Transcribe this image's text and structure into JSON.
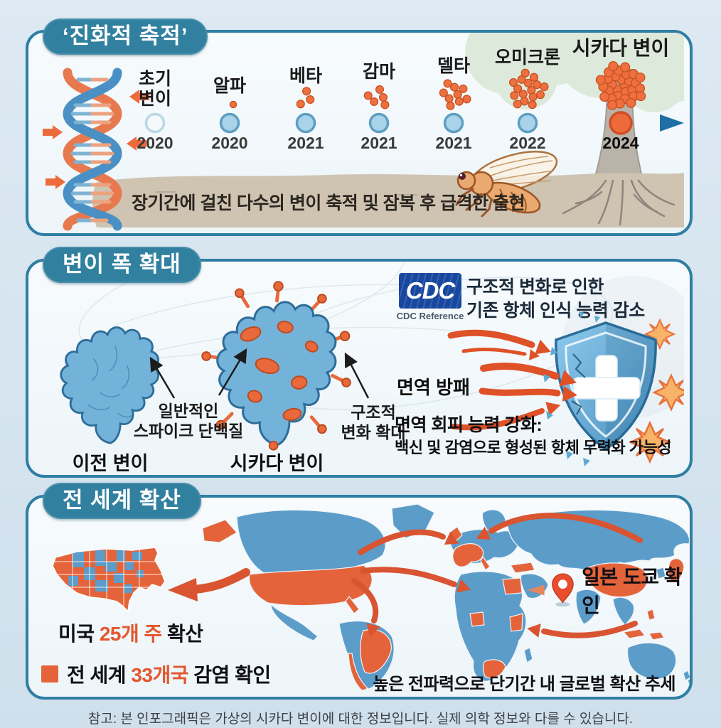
{
  "page": {
    "footer_note": "참고: 본 인포그래픽은 가상의 시카다 변이에 대한 정보입니다. 실제 의학 정보와 다를 수 있습니다."
  },
  "colors": {
    "background": "#d8e6f0",
    "panel_border": "#2f7ea4",
    "pill_background": "#31809f",
    "accent_orange": "#e4633a",
    "map_blue": "#5b9cc9",
    "timeline_blue": "#1e6fa6"
  },
  "panel_evolution": {
    "title": "‘진화적 축적’",
    "caption": "장기간에 걸친 다수의 변이 축적 및 잠복 후 급격한 출현",
    "timeline": [
      {
        "label": "초기\n변이",
        "year": "2020",
        "dots": 0,
        "node": "open"
      },
      {
        "label": "알파",
        "year": "2020",
        "dots": 1,
        "node": "blue"
      },
      {
        "label": "베타",
        "year": "2021",
        "dots": 3,
        "node": "blue"
      },
      {
        "label": "감마",
        "year": "2021",
        "dots": 5,
        "node": "blue"
      },
      {
        "label": "델타",
        "year": "2021",
        "dots": 9,
        "node": "blue"
      },
      {
        "label": "오미크론",
        "year": "2022",
        "dots": 16,
        "node": "blue"
      },
      {
        "label": "시카다 변이",
        "year": "2024",
        "dots": 30,
        "node": "orange"
      }
    ]
  },
  "panel_mutation": {
    "title": "변이 폭 확대",
    "cdc": {
      "logo": "CDC",
      "caption": "CDC Reference"
    },
    "antibody_note_line1": "구조적 변화로 인한",
    "antibody_note_line2": "기존 항체 인식 능력 감소",
    "spike_annotation": "일반적인\n스파이크 단백질",
    "structural_annotation": "구조적\n변화 확대",
    "previous_variant_label": "이전 변이",
    "cicada_variant_label": "시카다 변이",
    "shield_label": "면역 방패",
    "evasion_note_line1": "면역 회피 능력 강화:",
    "evasion_note_line2": "백신 및 감염으로 형성된 항체 무력화 가능성"
  },
  "panel_spread": {
    "title": "전 세계 확산",
    "us_spread": {
      "prefix": "미국 ",
      "highlight": "25개 주",
      "suffix": " 확산"
    },
    "japan_label": "일본 도쿄 확인",
    "global_confirmed": {
      "prefix": "전 세계 ",
      "highlight": "33개국",
      "suffix": " 감염 확인"
    },
    "trend_note": "높은 전파력으로 단기간 내 글로벌 확산 추세"
  }
}
